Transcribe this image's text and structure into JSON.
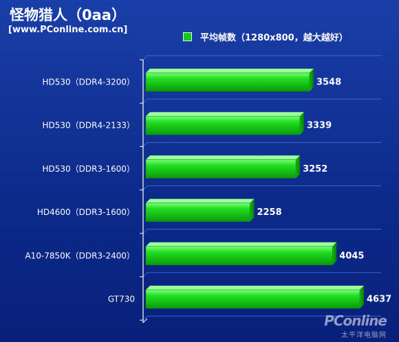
{
  "header": {
    "title": "怪物猎人（0aa）",
    "site": "[www.PConline.com.cn]"
  },
  "legend": {
    "label": "平均帧数（1280x800，越大越好）",
    "color": "#14c814"
  },
  "watermark": {
    "main": "PConline",
    "sub": "太平洋电脑网"
  },
  "chart_data": {
    "type": "bar",
    "orientation": "horizontal",
    "title": "怪物猎人（0aa）",
    "categories": [
      "HD530（DDR4-3200）",
      "HD530（DDR4-2133）",
      "HD530（DDR3-1600）",
      "HD4600（DDR3-1600）",
      "A10-7850K（DDR3-2400）",
      "GT730"
    ],
    "series": [
      {
        "name": "平均帧数（1280x800，越大越好）",
        "values": [
          3548,
          3339,
          3252,
          2258,
          4045,
          4637
        ]
      }
    ],
    "value_labels": [
      "3548",
      "3339",
      "3252",
      "2258",
      "4045",
      "4637"
    ],
    "xlim": [
      0,
      5000
    ],
    "grid": true,
    "legend_position": "top-right",
    "bar_color": "#14c814"
  }
}
